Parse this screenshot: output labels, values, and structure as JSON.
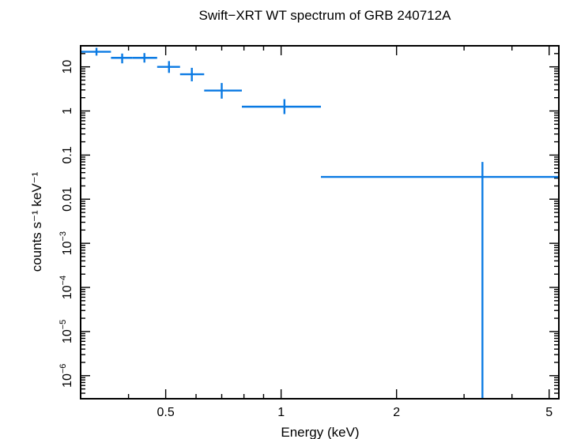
{
  "chart_data": {
    "type": "scatter",
    "title": "Swift−XRT WT spectrum of GRB 240712A",
    "xlabel": "Energy (keV)",
    "ylabel": "counts s⁻¹ keV⁻¹",
    "xscale": "log",
    "yscale": "log",
    "xlim": [
      0.3,
      5.3
    ],
    "ylim": [
      3e-07,
      30
    ],
    "grid": false,
    "x_tick_labels": [
      {
        "value": 0.5,
        "label": "0.5"
      },
      {
        "value": 1,
        "label": "1"
      },
      {
        "value": 2,
        "label": "2"
      },
      {
        "value": 5,
        "label": "5"
      }
    ],
    "y_tick_labels": [
      {
        "value": 10,
        "base": "10",
        "exp": ""
      },
      {
        "value": 1,
        "base": "1",
        "exp": ""
      },
      {
        "value": 0.1,
        "base": "0.1",
        "exp": ""
      },
      {
        "value": 0.01,
        "base": "0.01",
        "exp": ""
      },
      {
        "value": 0.001,
        "base": "10",
        "exp": "−3"
      },
      {
        "value": 0.0001,
        "base": "10",
        "exp": "−4"
      },
      {
        "value": 1e-05,
        "base": "10",
        "exp": "−5"
      },
      {
        "value": 1e-06,
        "base": "10",
        "exp": "−6"
      }
    ],
    "series": [
      {
        "color": "#0a7ae3",
        "points": [
          {
            "x": 0.33,
            "xlo": 0.3,
            "xhi": 0.36,
            "y": 22,
            "ylo": 18,
            "yhi": 27
          },
          {
            "x": 0.385,
            "xlo": 0.36,
            "xhi": 0.41,
            "y": 16,
            "ylo": 12,
            "yhi": 20
          },
          {
            "x": 0.44,
            "xlo": 0.41,
            "xhi": 0.475,
            "y": 16,
            "ylo": 12.5,
            "yhi": 20.5
          },
          {
            "x": 0.51,
            "xlo": 0.475,
            "xhi": 0.545,
            "y": 10,
            "ylo": 7.3,
            "yhi": 13.5
          },
          {
            "x": 0.585,
            "xlo": 0.545,
            "xhi": 0.63,
            "y": 6.8,
            "ylo": 4.7,
            "yhi": 9.5
          },
          {
            "x": 0.7,
            "xlo": 0.63,
            "xhi": 0.79,
            "y": 2.9,
            "ylo": 1.9,
            "yhi": 4.3
          },
          {
            "x": 1.02,
            "xlo": 0.79,
            "xhi": 1.27,
            "y": 1.25,
            "ylo": 0.85,
            "yhi": 1.85
          },
          {
            "x": 3.35,
            "xlo": 1.27,
            "xhi": 5.3,
            "y": 0.032,
            "ylo": 3e-07,
            "yhi": 0.07
          }
        ]
      }
    ]
  }
}
